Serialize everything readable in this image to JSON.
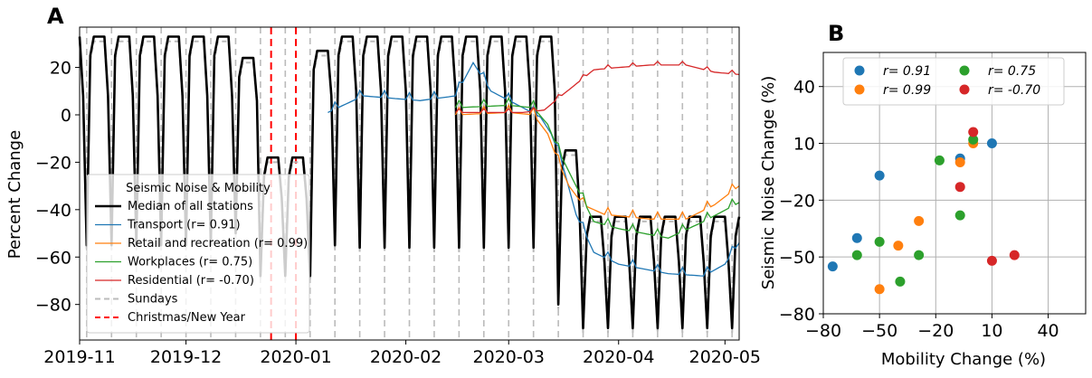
{
  "figure": {
    "panel_a_letter": "A",
    "panel_b_letter": "B"
  },
  "chart_data": [
    {
      "panel": "A",
      "type": "line",
      "xlabel": "",
      "ylabel": "Percent Change",
      "ylim": [
        -95,
        37
      ],
      "xlim": [
        "2019-11-01",
        "2020-05-05"
      ],
      "yticks": [
        20,
        0,
        -20,
        -40,
        -60,
        -80
      ],
      "ytick_labels": [
        "20",
        "0",
        "−20",
        "−40",
        "−60",
        "−80"
      ],
      "xticks": [
        {
          "date": "2019-11-01",
          "label": "2019-11"
        },
        {
          "date": "2019-12-01",
          "label": "2019-12"
        },
        {
          "date": "2020-01-01",
          "label": "2020-01"
        },
        {
          "date": "2020-02-01",
          "label": "2020-02"
        },
        {
          "date": "2020-03-01",
          "label": "2020-03"
        },
        {
          "date": "2020-04-01",
          "label": "2020-04"
        },
        {
          "date": "2020-05-01",
          "label": "2020-05"
        }
      ],
      "grid": false,
      "legend": {
        "title": "Seismic Noise & Mobility",
        "placement": "lower-left",
        "entries": [
          {
            "label": "Median of all stations",
            "color": "#000000",
            "style": "solid-thick"
          },
          {
            "label": "Transport (r= 0.91)",
            "color": "#1f77b4",
            "style": "solid"
          },
          {
            "label": "Retail and recreation (r= 0.99)",
            "color": "#ff7f0e",
            "style": "solid"
          },
          {
            "label": "Workplaces (r= 0.75)",
            "color": "#2ca02c",
            "style": "solid"
          },
          {
            "label": "Residential (r= -0.70)",
            "color": "#d62728",
            "style": "solid"
          },
          {
            "label": "Sundays",
            "color": "#bbbbbb",
            "style": "dashed"
          },
          {
            "label": "Christmas/New Year",
            "color": "#ff0000",
            "style": "dashed"
          }
        ]
      },
      "vlines": {
        "sundays_start": "2019-11-03",
        "sundays_end": "2020-05-03",
        "holidays": [
          "2019-12-25",
          "2020-01-01"
        ]
      },
      "series": [
        {
          "name": "Median of all stations",
          "color": "#000000",
          "weekday_profile": {
            "periods": [
              {
                "start": "2019-11-01",
                "end": "2019-12-14",
                "weekday": 33,
                "saturday": 8,
                "sunday": -55
              },
              {
                "start": "2019-12-15",
                "end": "2019-12-21",
                "weekday": 24,
                "saturday": 6,
                "sunday": -50
              },
              {
                "start": "2019-12-22",
                "end": "2020-01-05",
                "weekday": -18,
                "saturday": -35,
                "sunday": -68
              },
              {
                "start": "2020-01-06",
                "end": "2020-01-12",
                "weekday": 27,
                "saturday": 8,
                "sunday": -55
              },
              {
                "start": "2020-01-13",
                "end": "2020-03-14",
                "weekday": 33,
                "saturday": 10,
                "sunday": -56
              },
              {
                "start": "2020-03-15",
                "end": "2020-03-21",
                "weekday": -15,
                "saturday": -40,
                "sunday": -80
              },
              {
                "start": "2020-03-22",
                "end": "2020-05-05",
                "weekday": -43,
                "saturday": -62,
                "sunday": -90
              }
            ]
          }
        },
        {
          "name": "Transport (r= 0.91)",
          "color": "#1f77b4",
          "points": [
            [
              "2020-01-10",
              1
            ],
            [
              "2020-01-20",
              8
            ],
            [
              "2020-02-05",
              6
            ],
            [
              "2020-02-15",
              8
            ],
            [
              "2020-02-20",
              22
            ],
            [
              "2020-02-25",
              10
            ],
            [
              "2020-03-05",
              3
            ],
            [
              "2020-03-10",
              -1
            ],
            [
              "2020-03-13",
              -8
            ],
            [
              "2020-03-16",
              -20
            ],
            [
              "2020-03-20",
              -42
            ],
            [
              "2020-03-25",
              -58
            ],
            [
              "2020-04-01",
              -63
            ],
            [
              "2020-04-15",
              -67
            ],
            [
              "2020-04-25",
              -68
            ],
            [
              "2020-05-01",
              -63
            ],
            [
              "2020-05-05",
              -54
            ]
          ]
        },
        {
          "name": "Retail and recreation (r= 0.99)",
          "color": "#ff7f0e",
          "points": [
            [
              "2020-02-15",
              0
            ],
            [
              "2020-03-01",
              1
            ],
            [
              "2020-03-08",
              0
            ],
            [
              "2020-03-12",
              -8
            ],
            [
              "2020-03-15",
              -20
            ],
            [
              "2020-03-18",
              -30
            ],
            [
              "2020-03-22",
              -38
            ],
            [
              "2020-03-28",
              -42
            ],
            [
              "2020-04-10",
              -44
            ],
            [
              "2020-04-20",
              -44
            ],
            [
              "2020-04-28",
              -38
            ],
            [
              "2020-05-05",
              -30
            ]
          ]
        },
        {
          "name": "Workplaces (r= 0.75)",
          "color": "#2ca02c",
          "points": [
            [
              "2020-02-15",
              3
            ],
            [
              "2020-03-01",
              4
            ],
            [
              "2020-03-08",
              3
            ],
            [
              "2020-03-12",
              -4
            ],
            [
              "2020-03-15",
              -15
            ],
            [
              "2020-03-20",
              -30
            ],
            [
              "2020-03-25",
              -45
            ],
            [
              "2020-04-01",
              -48
            ],
            [
              "2020-04-15",
              -52
            ],
            [
              "2020-04-25",
              -45
            ],
            [
              "2020-05-05",
              -37
            ]
          ]
        },
        {
          "name": "Residential (r= -0.70)",
          "color": "#d62728",
          "points": [
            [
              "2020-02-15",
              1
            ],
            [
              "2020-03-05",
              1
            ],
            [
              "2020-03-11",
              2
            ],
            [
              "2020-03-15",
              7
            ],
            [
              "2020-03-20",
              13
            ],
            [
              "2020-03-25",
              19
            ],
            [
              "2020-04-01",
              20
            ],
            [
              "2020-04-10",
              21
            ],
            [
              "2020-04-20",
              21
            ],
            [
              "2020-04-28",
              18
            ],
            [
              "2020-05-05",
              17
            ]
          ]
        }
      ]
    },
    {
      "panel": "B",
      "type": "scatter",
      "xlabel": "Mobility Change (%)",
      "ylabel": "Seismic Noise Change (%)",
      "xlim": [
        -80,
        60
      ],
      "ylim": [
        -80,
        58
      ],
      "xticks": [
        -80,
        -50,
        -20,
        10,
        40
      ],
      "xtick_labels": [
        "−80",
        "−50",
        "−20",
        "10",
        "40"
      ],
      "yticks": [
        40,
        10,
        -20,
        -50,
        -80
      ],
      "ytick_labels": [
        "40",
        "10",
        "−20",
        "−50",
        "−80"
      ],
      "grid": true,
      "legend": {
        "placement": "top",
        "entries": [
          {
            "label": "r= 0.91",
            "color": "#1f77b4"
          },
          {
            "label": "r= 0.99",
            "color": "#ff7f0e"
          },
          {
            "label": "r= 0.75",
            "color": "#2ca02c"
          },
          {
            "label": "r= -0.70",
            "color": "#d62728"
          }
        ]
      },
      "series": [
        {
          "name": "r= 0.91",
          "color": "#1f77b4",
          "points": [
            [
              -75,
              -55
            ],
            [
              -62,
              -40
            ],
            [
              -50,
              -7
            ],
            [
              -7,
              2
            ],
            [
              10,
              10
            ]
          ]
        },
        {
          "name": "r= 0.99",
          "color": "#ff7f0e",
          "points": [
            [
              -50,
              -67
            ],
            [
              -40,
              -44
            ],
            [
              -29,
              -31
            ],
            [
              -7,
              0
            ],
            [
              0,
              10
            ]
          ]
        },
        {
          "name": "r= 0.75",
          "color": "#2ca02c",
          "points": [
            [
              -62,
              -49
            ],
            [
              -50,
              -42
            ],
            [
              -39,
              -63
            ],
            [
              -29,
              -49
            ],
            [
              -18,
              1
            ],
            [
              -7,
              -28
            ],
            [
              0,
              12
            ]
          ]
        },
        {
          "name": "r= -0.70",
          "color": "#d62728",
          "points": [
            [
              -7,
              -13
            ],
            [
              0,
              16
            ],
            [
              10,
              -52
            ],
            [
              22,
              -49
            ]
          ]
        }
      ]
    }
  ]
}
